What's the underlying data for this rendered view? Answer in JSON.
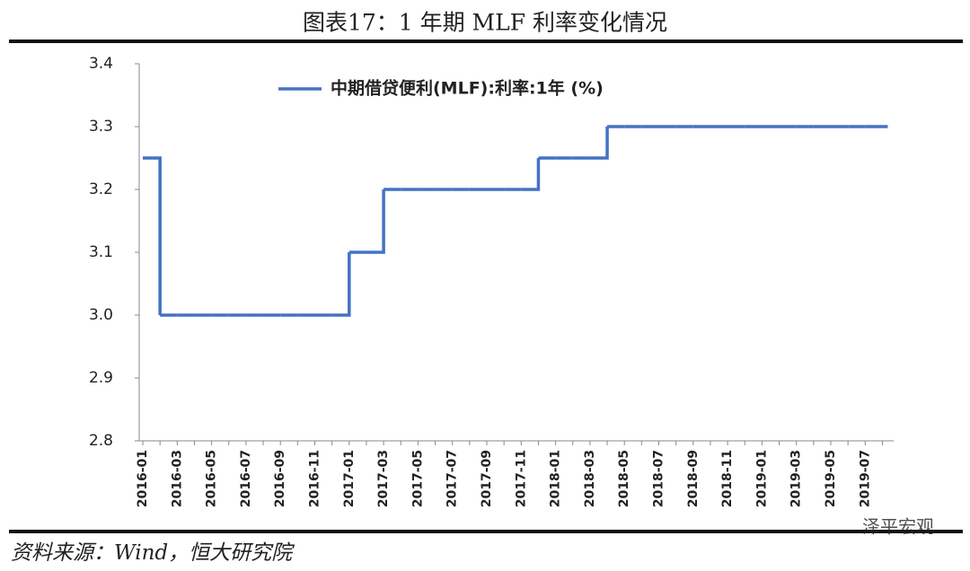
{
  "chart_data": {
    "type": "step",
    "title": "图表17：1 年期 MLF 利率变化情况",
    "source": "资料来源：Wind，恒大研究院",
    "watermark": "泽平宏观",
    "categories": [
      "2016-01",
      null,
      "2016-03",
      null,
      "2016-05",
      null,
      "2016-07",
      null,
      "2016-09",
      null,
      "2016-11",
      null,
      "2017-01",
      null,
      "2017-03",
      null,
      "2017-05",
      null,
      "2017-07",
      null,
      "2017-09",
      null,
      "2017-11",
      null,
      "2018-01",
      null,
      "2018-03",
      null,
      "2018-05",
      null,
      "2018-07",
      null,
      "2018-09",
      null,
      "2018-11",
      null,
      "2019-01",
      null,
      "2019-03",
      null,
      "2019-05",
      null,
      "2019-07",
      null
    ],
    "series": [
      {
        "name": "中期借贷便利(MLF):利率:1年 (%)",
        "color": "#4472c4",
        "values": [
          3.25,
          3.0,
          3.0,
          3.0,
          3.0,
          3.0,
          3.0,
          3.0,
          3.0,
          3.0,
          3.0,
          3.0,
          3.1,
          3.1,
          3.2,
          3.2,
          3.2,
          3.2,
          3.2,
          3.2,
          3.2,
          3.2,
          3.2,
          3.25,
          3.25,
          3.25,
          3.25,
          3.3,
          3.3,
          3.3,
          3.3,
          3.3,
          3.3,
          3.3,
          3.3,
          3.3,
          3.3,
          3.3,
          3.3,
          3.3,
          3.3,
          3.3,
          3.3,
          3.3
        ]
      }
    ],
    "ylim": [
      2.8,
      3.4
    ],
    "yticks": [
      2.8,
      2.9,
      {
        "value": 3,
        "label": "3.0"
      },
      3.1,
      3.2,
      3.3,
      3.4
    ],
    "legend": "top"
  }
}
